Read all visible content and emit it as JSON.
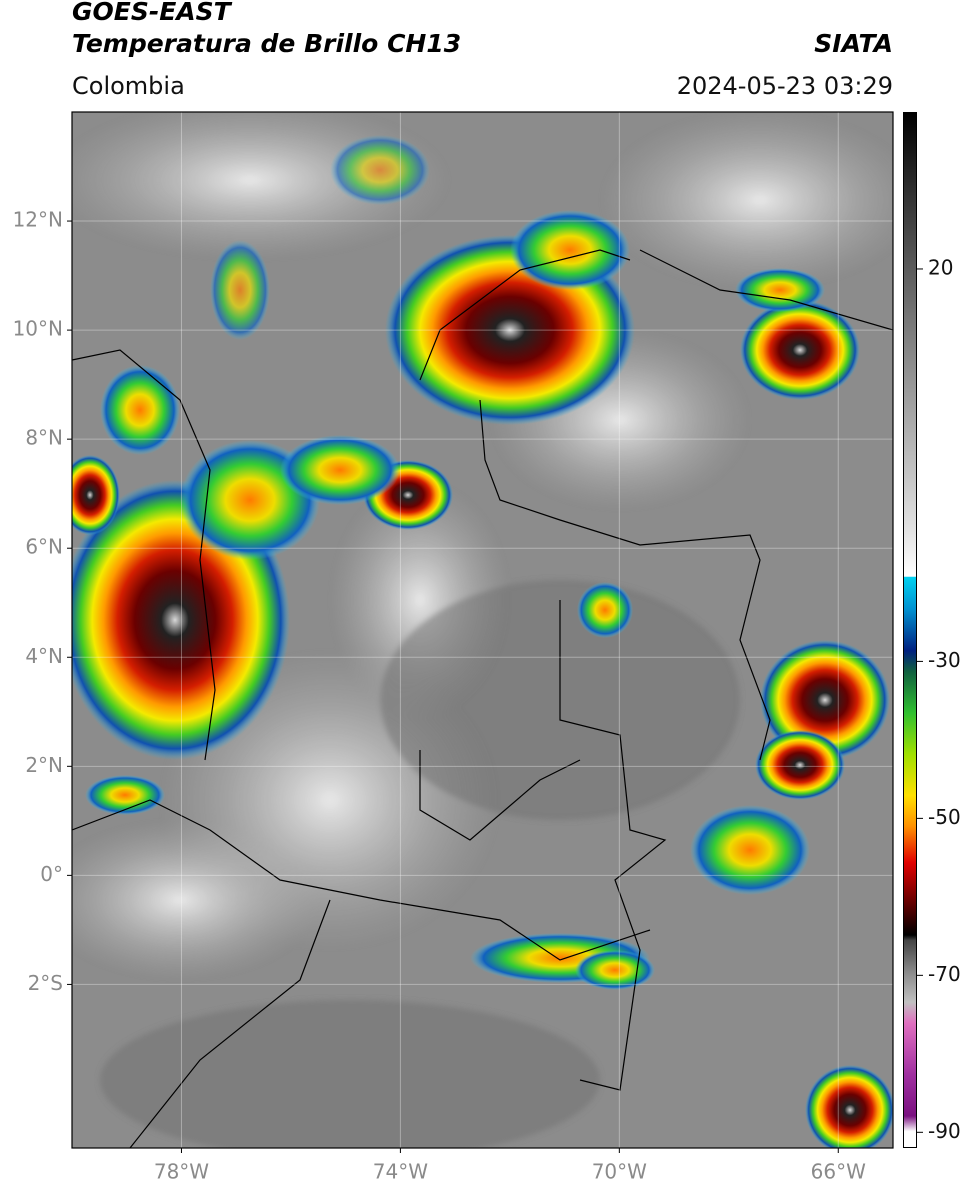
{
  "header": {
    "title": "GOES-EAST",
    "subtitle": "Temperatura de Brillo CH13",
    "source": "SIATA",
    "region": "Colombia",
    "timestamp": "2024-05-23 03:29"
  },
  "map": {
    "xlim": [
      -80,
      -65
    ],
    "ylim": [
      -5,
      14
    ],
    "grid": true,
    "xticks": [
      {
        "value": -78,
        "label": "78°W"
      },
      {
        "value": -74,
        "label": "74°W"
      },
      {
        "value": -70,
        "label": "70°W"
      },
      {
        "value": -66,
        "label": "66°W"
      }
    ],
    "yticks": [
      {
        "value": 12,
        "label": "12°N"
      },
      {
        "value": 10,
        "label": "10°N"
      },
      {
        "value": 8,
        "label": "8°N"
      },
      {
        "value": 6,
        "label": "6°N"
      },
      {
        "value": 4,
        "label": "4°N"
      },
      {
        "value": 2,
        "label": "2°N"
      },
      {
        "value": 0,
        "label": "0°"
      },
      {
        "value": -2,
        "label": "2°S"
      }
    ]
  },
  "colorbar": {
    "lim": [
      -92,
      40
    ],
    "ticks": [
      20,
      -30,
      -50,
      -70,
      -90
    ]
  }
}
